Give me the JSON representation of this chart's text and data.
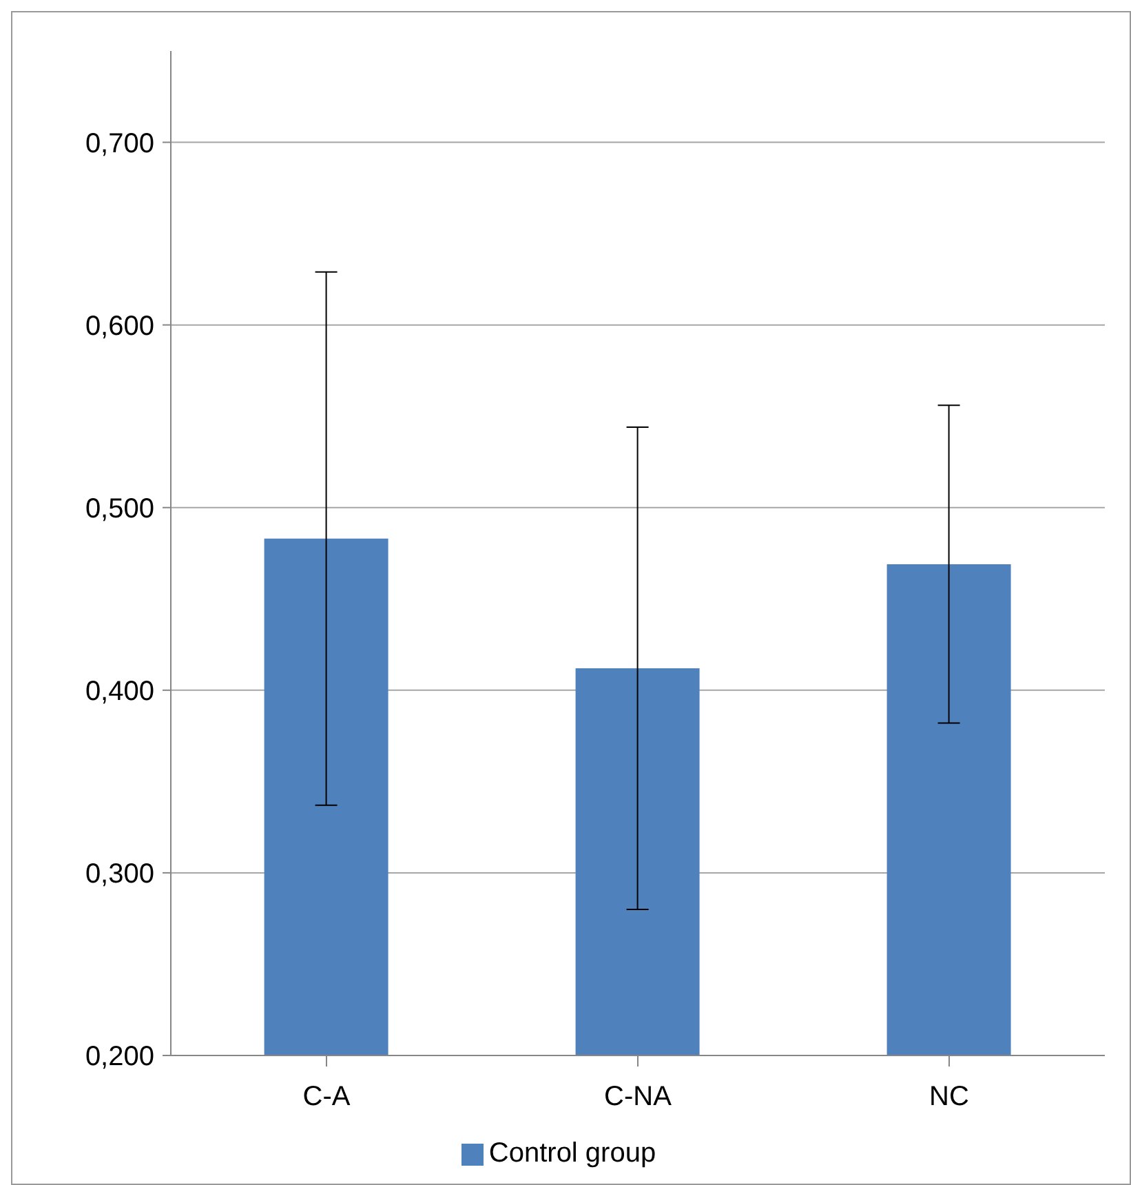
{
  "chart_data": {
    "type": "bar",
    "categories": [
      "C-A",
      "C-NA",
      "NC"
    ],
    "series": [
      {
        "name": "Control group",
        "color": "#4f81bd",
        "values": [
          0.483,
          0.412,
          0.469
        ],
        "errors": [
          0.146,
          0.132,
          0.087
        ]
      }
    ],
    "ylim": [
      0.2,
      0.75
    ],
    "yticks": [
      {
        "value": 0.2,
        "label": "0,200"
      },
      {
        "value": 0.3,
        "label": "0,300"
      },
      {
        "value": 0.4,
        "label": "0,400"
      },
      {
        "value": 0.5,
        "label": "0,500"
      },
      {
        "value": 0.6,
        "label": "0,600"
      },
      {
        "value": 0.7,
        "label": "0,700"
      }
    ],
    "grid": "y",
    "legend": "bottom"
  }
}
